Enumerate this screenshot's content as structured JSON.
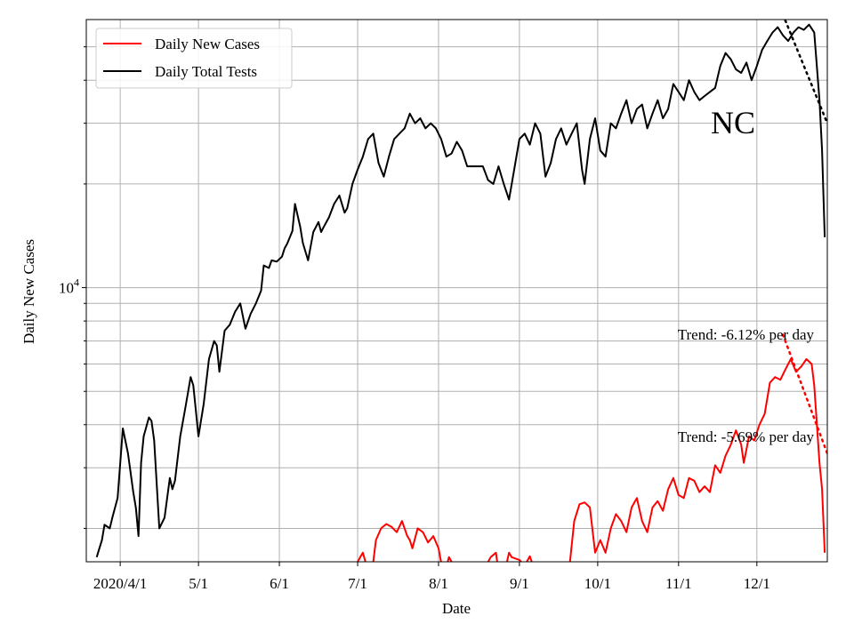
{
  "chart_data": {
    "type": "line",
    "title": "",
    "annotation": "NC",
    "xlabel": "Date",
    "ylabel": "Daily New Cases",
    "y_scale": "log",
    "ylim": [
      1600,
      60000
    ],
    "xlim": [
      "2020-03-19",
      "2020-12-28"
    ],
    "x_ticks": [
      {
        "date": "2020-04-01",
        "label": "2020/4/1"
      },
      {
        "date": "2020-05-01",
        "label": "5/1"
      },
      {
        "date": "2020-06-01",
        "label": "6/1"
      },
      {
        "date": "2020-07-01",
        "label": "7/1"
      },
      {
        "date": "2020-08-01",
        "label": "8/1"
      },
      {
        "date": "2020-09-01",
        "label": "9/1"
      },
      {
        "date": "2020-10-01",
        "label": "10/1"
      },
      {
        "date": "2020-11-01",
        "label": "11/1"
      },
      {
        "date": "2020-12-01",
        "label": "12/1"
      }
    ],
    "y_major_tick": {
      "base": "10",
      "exponent": "4",
      "value": 10000
    },
    "y_minor_ticks": [
      2000,
      3000,
      4000,
      5000,
      6000,
      7000,
      8000,
      9000,
      20000,
      30000,
      40000,
      50000
    ],
    "grid": true,
    "legend": {
      "placement": "top-left",
      "entries": [
        {
          "label": "Daily New Cases",
          "color": "#ff0000"
        },
        {
          "label": "Daily Total Tests",
          "color": "#000000"
        }
      ]
    },
    "series": [
      {
        "name": "Daily New Cases",
        "color": "#ff0000",
        "points": [
          [
            "2020-06-30",
            1550
          ],
          [
            "2020-07-02",
            1650
          ],
          [
            "2020-07-03",
            1700
          ],
          [
            "2020-07-04",
            1600
          ],
          [
            "2020-07-05",
            1450
          ],
          [
            "2020-07-07",
            1600
          ],
          [
            "2020-07-08",
            1850
          ],
          [
            "2020-07-10",
            2000
          ],
          [
            "2020-07-12",
            2060
          ],
          [
            "2020-07-14",
            2020
          ],
          [
            "2020-07-16",
            1950
          ],
          [
            "2020-07-18",
            2100
          ],
          [
            "2020-07-20",
            1900
          ],
          [
            "2020-07-21",
            1850
          ],
          [
            "2020-07-22",
            1750
          ],
          [
            "2020-07-24",
            2000
          ],
          [
            "2020-07-26",
            1950
          ],
          [
            "2020-07-28",
            1820
          ],
          [
            "2020-07-30",
            1900
          ],
          [
            "2020-08-01",
            1750
          ],
          [
            "2020-08-03",
            1450
          ],
          [
            "2020-08-05",
            1650
          ],
          [
            "2020-08-07",
            1550
          ],
          [
            "2020-08-19",
            1550
          ],
          [
            "2020-08-21",
            1650
          ],
          [
            "2020-08-23",
            1700
          ],
          [
            "2020-08-24",
            1500
          ],
          [
            "2020-08-26",
            1450
          ],
          [
            "2020-08-28",
            1700
          ],
          [
            "2020-08-29",
            1650
          ],
          [
            "2020-09-01",
            1620
          ],
          [
            "2020-09-03",
            1560
          ],
          [
            "2020-09-05",
            1660
          ],
          [
            "2020-09-07",
            1500
          ],
          [
            "2020-09-16",
            1500
          ],
          [
            "2020-09-20",
            1500
          ],
          [
            "2020-09-22",
            2100
          ],
          [
            "2020-09-24",
            2350
          ],
          [
            "2020-09-26",
            2380
          ],
          [
            "2020-09-28",
            2300
          ],
          [
            "2020-09-30",
            1700
          ],
          [
            "2020-10-02",
            1850
          ],
          [
            "2020-10-04",
            1700
          ],
          [
            "2020-10-06",
            2000
          ],
          [
            "2020-10-08",
            2200
          ],
          [
            "2020-10-10",
            2100
          ],
          [
            "2020-10-12",
            1950
          ],
          [
            "2020-10-14",
            2300
          ],
          [
            "2020-10-16",
            2450
          ],
          [
            "2020-10-18",
            2100
          ],
          [
            "2020-10-20",
            1950
          ],
          [
            "2020-10-22",
            2300
          ],
          [
            "2020-10-24",
            2400
          ],
          [
            "2020-10-26",
            2250
          ],
          [
            "2020-10-28",
            2600
          ],
          [
            "2020-10-30",
            2800
          ],
          [
            "2020-11-01",
            2500
          ],
          [
            "2020-11-03",
            2450
          ],
          [
            "2020-11-05",
            2800
          ],
          [
            "2020-11-07",
            2750
          ],
          [
            "2020-11-09",
            2550
          ],
          [
            "2020-11-11",
            2650
          ],
          [
            "2020-11-13",
            2550
          ],
          [
            "2020-11-15",
            3050
          ],
          [
            "2020-11-17",
            2900
          ],
          [
            "2020-11-19",
            3250
          ],
          [
            "2020-11-21",
            3500
          ],
          [
            "2020-11-23",
            3850
          ],
          [
            "2020-11-25",
            3500
          ],
          [
            "2020-11-26",
            3100
          ],
          [
            "2020-11-28",
            3700
          ],
          [
            "2020-11-30",
            3600
          ],
          [
            "2020-12-02",
            4000
          ],
          [
            "2020-12-04",
            4300
          ],
          [
            "2020-12-06",
            5300
          ],
          [
            "2020-12-08",
            5500
          ],
          [
            "2020-12-10",
            5400
          ],
          [
            "2020-12-12",
            5800
          ],
          [
            "2020-12-14",
            6200
          ],
          [
            "2020-12-16",
            5700
          ],
          [
            "2020-12-18",
            5900
          ],
          [
            "2020-12-20",
            6200
          ],
          [
            "2020-12-22",
            6000
          ],
          [
            "2020-12-23",
            5200
          ],
          [
            "2020-12-25",
            3100
          ],
          [
            "2020-12-26",
            2600
          ],
          [
            "2020-12-27",
            1700
          ]
        ]
      },
      {
        "name": "Daily Total Tests",
        "color": "#000000",
        "points": [
          [
            "2020-03-23",
            1650
          ],
          [
            "2020-03-24",
            1750
          ],
          [
            "2020-03-25",
            1850
          ],
          [
            "2020-03-26",
            2050
          ],
          [
            "2020-03-28",
            2000
          ],
          [
            "2020-03-29",
            2150
          ],
          [
            "2020-03-31",
            2450
          ],
          [
            "2020-04-02",
            3900
          ],
          [
            "2020-04-04",
            3300
          ],
          [
            "2020-04-06",
            2550
          ],
          [
            "2020-04-07",
            2300
          ],
          [
            "2020-04-08",
            1900
          ],
          [
            "2020-04-09",
            3100
          ],
          [
            "2020-04-10",
            3700
          ],
          [
            "2020-04-12",
            4200
          ],
          [
            "2020-04-13",
            4100
          ],
          [
            "2020-04-14",
            3600
          ],
          [
            "2020-04-16",
            2000
          ],
          [
            "2020-04-18",
            2150
          ],
          [
            "2020-04-20",
            2800
          ],
          [
            "2020-04-21",
            2600
          ],
          [
            "2020-04-22",
            2750
          ],
          [
            "2020-04-24",
            3700
          ],
          [
            "2020-04-26",
            4500
          ],
          [
            "2020-04-28",
            5500
          ],
          [
            "2020-04-29",
            5200
          ],
          [
            "2020-05-01",
            3700
          ],
          [
            "2020-05-03",
            4600
          ],
          [
            "2020-05-05",
            6200
          ],
          [
            "2020-05-07",
            7000
          ],
          [
            "2020-05-08",
            6800
          ],
          [
            "2020-05-09",
            5700
          ],
          [
            "2020-05-11",
            7500
          ],
          [
            "2020-05-13",
            7800
          ],
          [
            "2020-05-15",
            8500
          ],
          [
            "2020-05-17",
            9000
          ],
          [
            "2020-05-19",
            7600
          ],
          [
            "2020-05-21",
            8400
          ],
          [
            "2020-05-23",
            9000
          ],
          [
            "2020-05-25",
            9800
          ],
          [
            "2020-05-26",
            11600
          ],
          [
            "2020-05-28",
            11400
          ],
          [
            "2020-05-29",
            12000
          ],
          [
            "2020-05-31",
            11900
          ],
          [
            "2020-06-02",
            12300
          ],
          [
            "2020-06-03",
            13000
          ],
          [
            "2020-06-04",
            13400
          ],
          [
            "2020-06-06",
            14600
          ],
          [
            "2020-06-07",
            17500
          ],
          [
            "2020-06-09",
            15000
          ],
          [
            "2020-06-10",
            13500
          ],
          [
            "2020-06-12",
            12000
          ],
          [
            "2020-06-14",
            14500
          ],
          [
            "2020-06-16",
            15500
          ],
          [
            "2020-06-17",
            14500
          ],
          [
            "2020-06-18",
            15000
          ],
          [
            "2020-06-20",
            16000
          ],
          [
            "2020-06-22",
            17500
          ],
          [
            "2020-06-24",
            18500
          ],
          [
            "2020-06-26",
            16500
          ],
          [
            "2020-06-27",
            17000
          ],
          [
            "2020-06-29",
            20000
          ],
          [
            "2020-07-01",
            22000
          ],
          [
            "2020-07-03",
            24000
          ],
          [
            "2020-07-05",
            27000
          ],
          [
            "2020-07-07",
            28000
          ],
          [
            "2020-07-09",
            23000
          ],
          [
            "2020-07-11",
            21000
          ],
          [
            "2020-07-13",
            24000
          ],
          [
            "2020-07-15",
            27000
          ],
          [
            "2020-07-17",
            28000
          ],
          [
            "2020-07-19",
            29000
          ],
          [
            "2020-07-21",
            32000
          ],
          [
            "2020-07-23",
            30000
          ],
          [
            "2020-07-25",
            31000
          ],
          [
            "2020-07-27",
            29000
          ],
          [
            "2020-07-29",
            30000
          ],
          [
            "2020-07-31",
            29000
          ],
          [
            "2020-08-02",
            27000
          ],
          [
            "2020-08-04",
            24000
          ],
          [
            "2020-08-06",
            24500
          ],
          [
            "2020-08-08",
            26500
          ],
          [
            "2020-08-10",
            25000
          ],
          [
            "2020-08-12",
            22500
          ],
          [
            "2020-08-14",
            22500
          ],
          [
            "2020-08-16",
            22500
          ],
          [
            "2020-08-18",
            22500
          ],
          [
            "2020-08-20",
            20500
          ],
          [
            "2020-08-22",
            20000
          ],
          [
            "2020-08-24",
            22500
          ],
          [
            "2020-08-26",
            20000
          ],
          [
            "2020-08-28",
            18000
          ],
          [
            "2020-08-30",
            22000
          ],
          [
            "2020-09-01",
            27000
          ],
          [
            "2020-09-03",
            28000
          ],
          [
            "2020-09-05",
            26000
          ],
          [
            "2020-09-07",
            30000
          ],
          [
            "2020-09-09",
            28000
          ],
          [
            "2020-09-11",
            21000
          ],
          [
            "2020-09-13",
            23000
          ],
          [
            "2020-09-15",
            27000
          ],
          [
            "2020-09-17",
            29000
          ],
          [
            "2020-09-19",
            26000
          ],
          [
            "2020-09-21",
            28000
          ],
          [
            "2020-09-23",
            30000
          ],
          [
            "2020-09-25",
            22000
          ],
          [
            "2020-09-26",
            20000
          ],
          [
            "2020-09-28",
            27000
          ],
          [
            "2020-09-30",
            31000
          ],
          [
            "2020-10-02",
            25000
          ],
          [
            "2020-10-04",
            24000
          ],
          [
            "2020-10-06",
            30000
          ],
          [
            "2020-10-08",
            29000
          ],
          [
            "2020-10-10",
            32000
          ],
          [
            "2020-10-12",
            35000
          ],
          [
            "2020-10-14",
            30000
          ],
          [
            "2020-10-16",
            33000
          ],
          [
            "2020-10-18",
            34000
          ],
          [
            "2020-10-20",
            29000
          ],
          [
            "2020-10-22",
            32000
          ],
          [
            "2020-10-24",
            35000
          ],
          [
            "2020-10-26",
            31000
          ],
          [
            "2020-10-28",
            33000
          ],
          [
            "2020-10-30",
            39000
          ],
          [
            "2020-11-01",
            37000
          ],
          [
            "2020-11-03",
            35000
          ],
          [
            "2020-11-05",
            40000
          ],
          [
            "2020-11-07",
            37000
          ],
          [
            "2020-11-09",
            35000
          ],
          [
            "2020-11-11",
            36000
          ],
          [
            "2020-11-13",
            37000
          ],
          [
            "2020-11-15",
            38000
          ],
          [
            "2020-11-17",
            44000
          ],
          [
            "2020-11-19",
            48000
          ],
          [
            "2020-11-21",
            46000
          ],
          [
            "2020-11-23",
            43000
          ],
          [
            "2020-11-25",
            42000
          ],
          [
            "2020-11-27",
            45000
          ],
          [
            "2020-11-29",
            40000
          ],
          [
            "2020-12-01",
            44000
          ],
          [
            "2020-12-03",
            49000
          ],
          [
            "2020-12-05",
            52000
          ],
          [
            "2020-12-07",
            55000
          ],
          [
            "2020-12-09",
            57000
          ],
          [
            "2020-12-11",
            54000
          ],
          [
            "2020-12-13",
            52000
          ],
          [
            "2020-12-15",
            55000
          ],
          [
            "2020-12-17",
            57000
          ],
          [
            "2020-12-19",
            56000
          ],
          [
            "2020-12-21",
            58000
          ],
          [
            "2020-12-23",
            55000
          ],
          [
            "2020-12-25",
            35000
          ],
          [
            "2020-12-26",
            25000
          ],
          [
            "2020-12-27",
            14000
          ]
        ]
      }
    ],
    "trend_lines": [
      {
        "label": "Trend: -6.12% per day",
        "color": "#000000",
        "style": "dotted",
        "start": [
          "2020-12-11",
          62000
        ],
        "end": [
          "2020-12-28",
          30000
        ]
      },
      {
        "label": "Trend: -5.69% per day",
        "color": "#ff0000",
        "style": "dotted",
        "start": [
          "2020-12-11",
          7300
        ],
        "end": [
          "2020-12-28",
          3300
        ]
      }
    ]
  }
}
